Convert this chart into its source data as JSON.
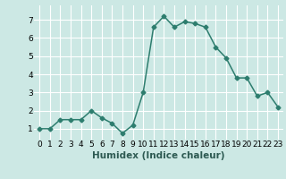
{
  "x": [
    0,
    1,
    2,
    3,
    4,
    5,
    6,
    7,
    8,
    9,
    10,
    11,
    12,
    13,
    14,
    15,
    16,
    17,
    18,
    19,
    20,
    21,
    22,
    23
  ],
  "y": [
    1.0,
    1.0,
    1.5,
    1.5,
    1.5,
    2.0,
    1.6,
    1.3,
    0.75,
    1.2,
    3.0,
    6.6,
    7.2,
    6.6,
    6.9,
    6.8,
    6.6,
    5.5,
    4.9,
    3.8,
    3.8,
    2.8,
    3.0,
    2.2
  ],
  "line_color": "#2d7d6e",
  "marker": "D",
  "marker_size": 2.5,
  "bg_color": "#cce8e4",
  "grid_color": "#ffffff",
  "xlabel": "Humidex (Indice chaleur)",
  "ylim": [
    0.4,
    7.8
  ],
  "xlim": [
    -0.5,
    23.5
  ],
  "yticks": [
    1,
    2,
    3,
    4,
    5,
    6,
    7
  ],
  "xticks": [
    0,
    1,
    2,
    3,
    4,
    5,
    6,
    7,
    8,
    9,
    10,
    11,
    12,
    13,
    14,
    15,
    16,
    17,
    18,
    19,
    20,
    21,
    22,
    23
  ],
  "xtick_labels": [
    "0",
    "1",
    "2",
    "3",
    "4",
    "5",
    "6",
    "7",
    "8",
    "9",
    "10",
    "11",
    "12",
    "13",
    "14",
    "15",
    "16",
    "17",
    "18",
    "19",
    "20",
    "21",
    "22",
    "23"
  ],
  "tick_fontsize": 6.5,
  "xlabel_fontsize": 7.5,
  "line_width": 1.1
}
